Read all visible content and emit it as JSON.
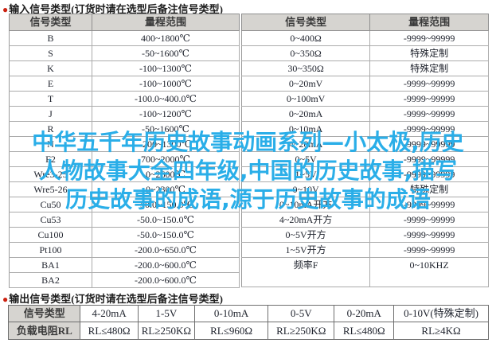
{
  "input_section": {
    "bullet": "●",
    "title": "输入信号类型(订货时请在选型后备注信号类型)",
    "left_table": {
      "headers": [
        "信号类型",
        "量程范围"
      ],
      "rows": [
        [
          "B",
          "400~1800℃"
        ],
        [
          "S",
          "-50~1600℃"
        ],
        [
          "K",
          "-100~1300℃"
        ],
        [
          "E",
          "-100~1000℃"
        ],
        [
          "T",
          "-100.0~400.0℃"
        ],
        [
          "J",
          "-100~1200℃"
        ],
        [
          "R",
          "-50~1600℃"
        ],
        [
          "N",
          "-200~1300℃"
        ],
        [
          "F2",
          "700~2000℃"
        ],
        [
          "Wre3-25",
          "0~2600℃"
        ],
        [
          "Wre5-26",
          "0~2300℃"
        ],
        [
          "Cu50",
          "-50.0~150.0℃"
        ],
        [
          "Cu53",
          "-50.0~150.0℃"
        ],
        [
          "Cu100",
          "-50.0~150.0℃"
        ],
        [
          "Pt100",
          "-200.0~650.0℃"
        ],
        [
          "BA1",
          "-200.0~600.0℃"
        ],
        [
          "BA2",
          "-200.0~600.0℃"
        ]
      ]
    },
    "right_table": {
      "headers": [
        "信号类型",
        "量程范围"
      ],
      "rows": [
        [
          "0~400Ω",
          "-9999~99999"
        ],
        [
          "0~350Ω",
          "特殊定制"
        ],
        [
          "30~350Ω",
          "特殊定制"
        ],
        [
          "0~20mV",
          "-9999~99999"
        ],
        [
          "0~100mV",
          "-9999~99999"
        ],
        [
          "0~20mA",
          "-9999~99999"
        ],
        [
          "0~10mA",
          "-9999~99999"
        ],
        [
          "4~20mA",
          "-9999~99999"
        ],
        [
          "0~5V",
          "-9999~99999"
        ],
        [
          "1~5V",
          "-9999~99999"
        ],
        [
          "0~10V",
          "特殊定制"
        ],
        [
          "0~10mA开方",
          "-9999~99999"
        ],
        [
          "4~20mA开方",
          "-9999~99999"
        ],
        [
          "0~5V开方",
          "-9999~99999"
        ],
        [
          "1~5V开方",
          "-9999~99999"
        ],
        [
          "频率F",
          "0~10KHZ"
        ],
        [
          "",
          ""
        ]
      ]
    }
  },
  "watermark": {
    "color": "#2aaee8",
    "lines": [
      "中华五千年历史故事动画系列—小太极,历史",
      "人物故事大全四年级,中国的历史故事,描写",
      "历史故事的成语,源于历史故事的成语"
    ]
  },
  "output_section": {
    "bullet": "●",
    "title": "输出信号类型(订货时请在选型后备注信号类型)",
    "table": {
      "rows": [
        [
          "信号类型",
          "4-20mA",
          "1-5V",
          "0-10mA",
          "0-5V",
          "0-20mA",
          "0-10V(特殊定制)"
        ],
        [
          "负载电阻RL",
          "RL≤480Ω",
          "RL≥250KΩ",
          "RL≤960Ω",
          "RL≥250KΩ",
          "RL≤480Ω",
          "RL≥4KΩ"
        ]
      ]
    }
  },
  "colors": {
    "accent_red": "#cc2211",
    "header_bg": "#d6d4d0",
    "watermark_cyan": "#2aaee8"
  }
}
